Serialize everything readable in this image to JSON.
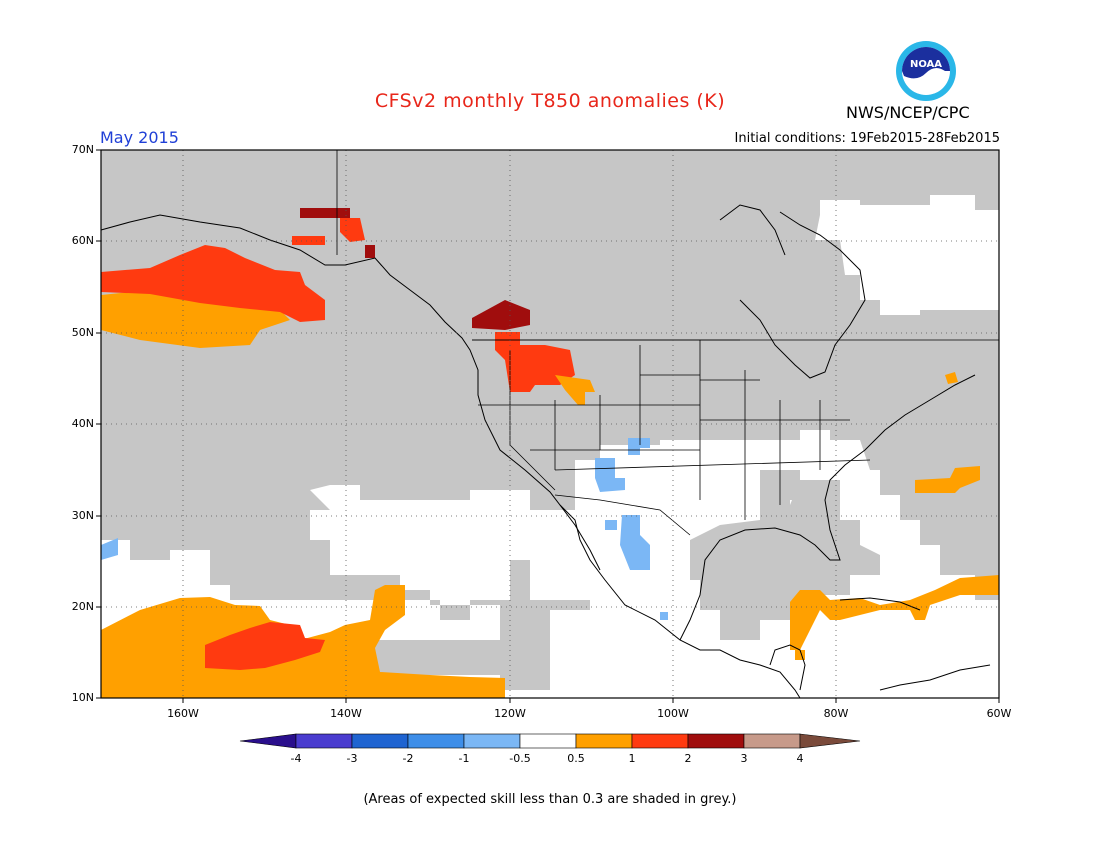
{
  "title": "CFSv2 monthly T850 anomalies (K)",
  "agency": "NWS/NCEP/CPC",
  "logo_text": "NOAA",
  "period": "May 2015",
  "initial_conditions": "Initial conditions: 19Feb2015-28Feb2015",
  "footnote": "(Areas of expected skill less than 0.3 are shaded in grey.)",
  "map": {
    "lon_range": [
      -170,
      -60
    ],
    "lat_range": [
      10,
      70
    ],
    "lat_labels": [
      "70N",
      "60N",
      "50N",
      "40N",
      "30N",
      "20N",
      "10N"
    ],
    "lon_labels": [
      "160W",
      "140W",
      "120W",
      "100W",
      "80W",
      "60W"
    ]
  },
  "colorbar": {
    "labels": [
      "-4",
      "-3",
      "-2",
      "-1",
      "-0.5",
      "0.5",
      "1",
      "2",
      "3",
      "4"
    ],
    "colors": [
      "#2a0f8c",
      "#4a3ccf",
      "#1f64d1",
      "#3e8ee8",
      "#7bb7f5",
      "#ffffff",
      "#ffa000",
      "#ff3a10",
      "#a00d0d",
      "#c79a8a",
      "#7a4a3a"
    ]
  },
  "colors": {
    "skill_grey": "#c6c6c6",
    "orange": "#ffa000",
    "red": "#ff3a10",
    "darkred": "#a00d0d",
    "lightblue": "#7bb7f5"
  }
}
